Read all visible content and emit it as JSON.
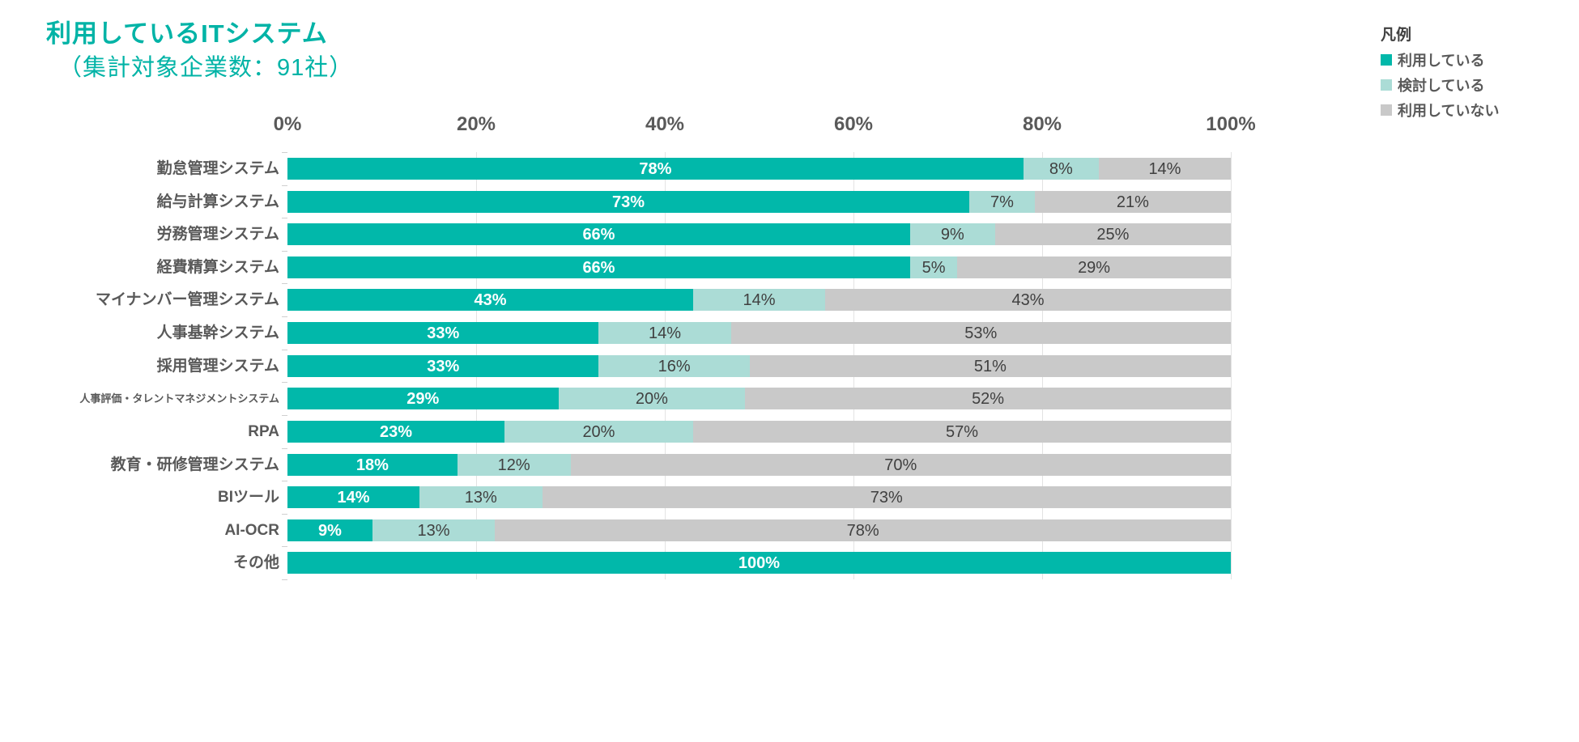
{
  "title": "利用しているITシステム",
  "subtitle": "（集計対象企業数：91社）",
  "legend": {
    "heading": "凡例",
    "items": [
      {
        "label": "利用している",
        "color": "#01b8aa"
      },
      {
        "label": "検討している",
        "color": "#abdcd6"
      },
      {
        "label": "利用していない",
        "color": "#c9c9c9"
      }
    ]
  },
  "axis": {
    "ticks": [
      "0%",
      "20%",
      "40%",
      "60%",
      "80%",
      "100%"
    ],
    "range": [
      0,
      100
    ]
  },
  "colors": {
    "accent_title": "#00b3a6",
    "series_using": "#01b8aa",
    "series_considering": "#abdcd6",
    "series_not_using": "#c9c9c9",
    "axis_text": "#595959",
    "label_dark": "#404040",
    "gridline": "#e3e3e3"
  },
  "chart_data": {
    "type": "bar",
    "orientation": "horizontal",
    "stacked": true,
    "title": "利用しているITシステム",
    "subtitle": "（集計対象企業数：91社）",
    "xlabel": "",
    "ylabel": "",
    "xlim": [
      0,
      100
    ],
    "x_tick_labels": [
      "0%",
      "20%",
      "40%",
      "60%",
      "80%",
      "100%"
    ],
    "grid": true,
    "legend_position": "top-right",
    "legend_title": "凡例",
    "categories": [
      "勤怠管理システム",
      "給与計算システム",
      "労務管理システム",
      "経費精算システム",
      "マイナンバー管理システム",
      "人事基幹システム",
      "採用管理システム",
      "人事評価・タレントマネジメントシステム",
      "RPA",
      "教育・研修管理システム",
      "BIツール",
      "AI-OCR",
      "その他"
    ],
    "series": [
      {
        "name": "利用している",
        "color": "#01b8aa",
        "values": [
          78,
          73,
          66,
          66,
          43,
          33,
          33,
          29,
          23,
          18,
          14,
          9,
          100
        ]
      },
      {
        "name": "検討している",
        "color": "#abdcd6",
        "values": [
          8,
          7,
          9,
          5,
          14,
          14,
          16,
          20,
          20,
          12,
          13,
          13,
          0
        ]
      },
      {
        "name": "利用していない",
        "color": "#c9c9c9",
        "values": [
          14,
          21,
          25,
          29,
          43,
          53,
          51,
          52,
          57,
          70,
          73,
          78,
          0
        ]
      }
    ],
    "data_label_format": "{value}%"
  }
}
